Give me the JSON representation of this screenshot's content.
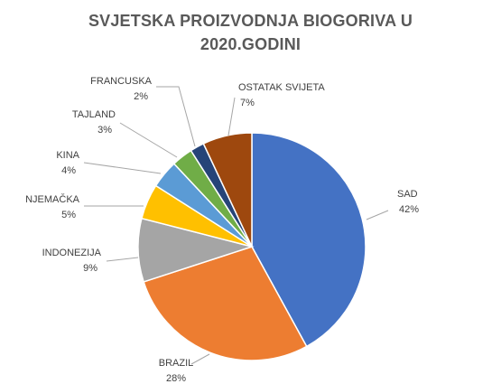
{
  "title": {
    "line1": "SVJETSKA PROIZVODNJA BIOGORIVA U",
    "line2": "2020.GODINI"
  },
  "chart_data": {
    "type": "pie",
    "title": "SVJETSKA PROIZVODNJA BIOGORIVA U 2020.GODINI",
    "start_angle_deg": 0,
    "direction": "clockwise",
    "slices": [
      {
        "label": "SAD",
        "value": 42,
        "value_label": "42%",
        "color": "#4472C4"
      },
      {
        "label": "BRAZIL",
        "value": 28,
        "value_label": "28%",
        "color": "#ED7D31"
      },
      {
        "label": "INDONEZIJA",
        "value": 9,
        "value_label": "9%",
        "color": "#A5A5A5"
      },
      {
        "label": "NJEMAČKA",
        "value": 5,
        "value_label": "5%",
        "color": "#FFC000"
      },
      {
        "label": "KINA",
        "value": 4,
        "value_label": "4%",
        "color": "#5B9BD5"
      },
      {
        "label": "TAJLAND",
        "value": 3,
        "value_label": "3%",
        "color": "#70AD47"
      },
      {
        "label": "FRANCUSKA",
        "value": 2,
        "value_label": "2%",
        "color": "#264478"
      },
      {
        "label": "OSTATAK SVIJETA",
        "value": 7,
        "value_label": "7%",
        "color": "#9E480E"
      }
    ],
    "legend": "none",
    "data_labels": "outside with leader lines"
  }
}
